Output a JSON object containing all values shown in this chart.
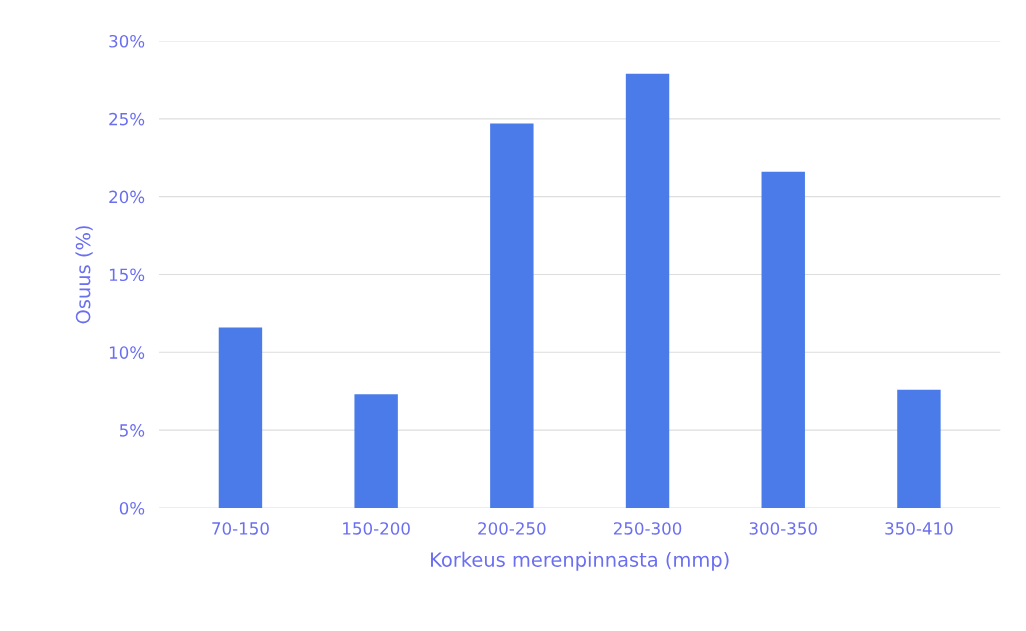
{
  "chart_data": {
    "type": "bar",
    "xlabel": "Korkeus merenpinnasta (mmp)",
    "ylabel": "Osuus (%)",
    "categories": [
      "70-150",
      "150-200",
      "200-250",
      "250-300",
      "300-350",
      "350-410"
    ],
    "values": [
      11.6,
      7.3,
      24.7,
      27.9,
      21.6,
      7.6
    ],
    "color": "#4a7be8",
    "ylim": [
      0,
      30
    ],
    "yticks": [
      {
        "value": 0,
        "label": "0%"
      },
      {
        "value": 5,
        "label": "5%"
      },
      {
        "value": 10,
        "label": "10%"
      },
      {
        "value": 15,
        "label": "15%"
      },
      {
        "value": 20,
        "label": "20%"
      },
      {
        "value": 25,
        "label": "25%"
      },
      {
        "value": 30,
        "label": "30%"
      }
    ],
    "grid": "y",
    "legend": false
  }
}
